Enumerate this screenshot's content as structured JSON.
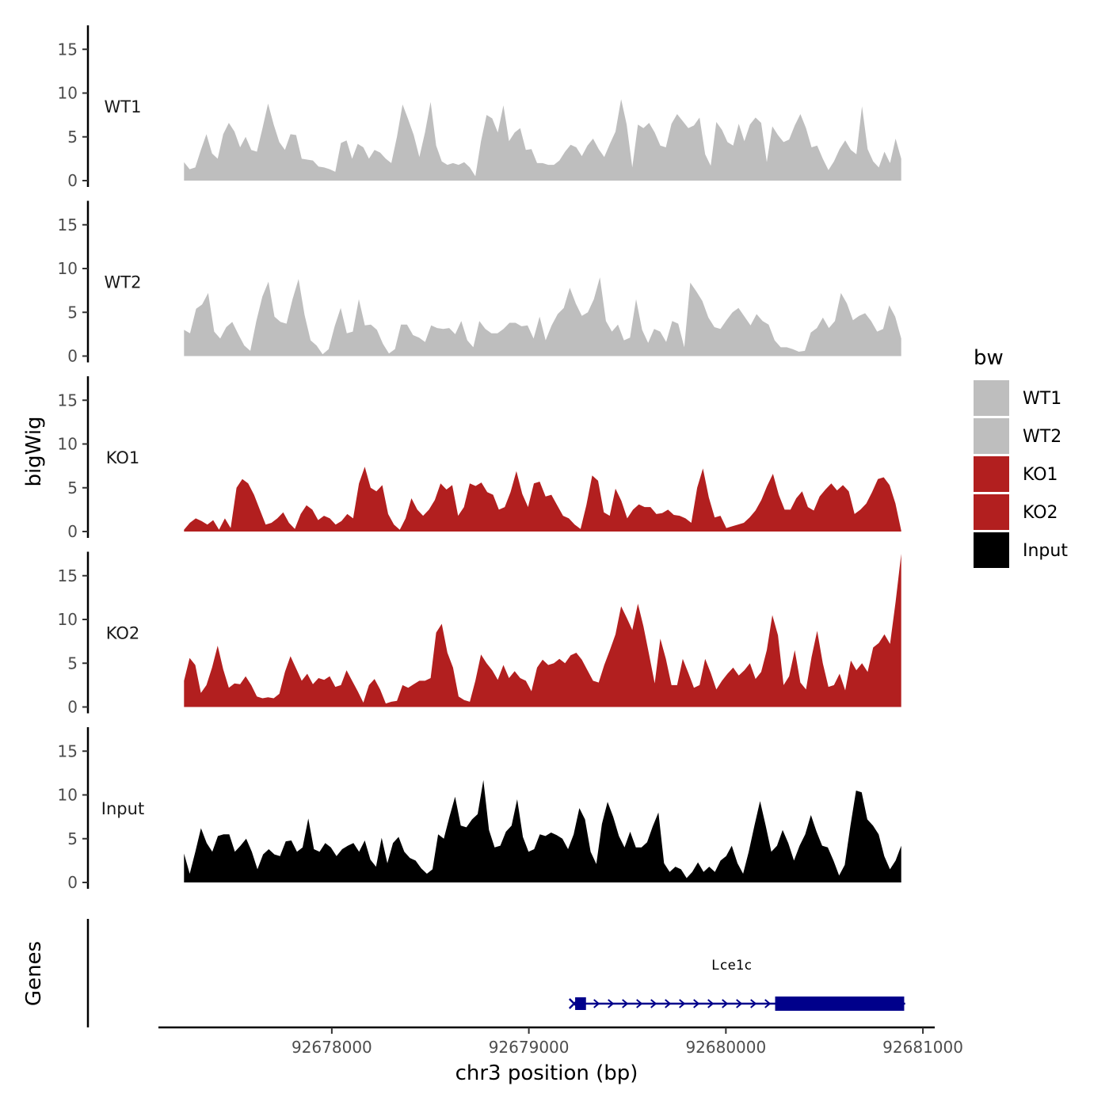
{
  "chart_data": {
    "type": "area",
    "xlabel": "chr3 position (bp)",
    "ylabel": "bigWig",
    "genes_label": "Genes",
    "xlim": [
      92677120,
      92681060
    ],
    "x_range": [
      92677250,
      92680890
    ],
    "x_ticks": [
      92678000,
      92679000,
      92680000,
      92681000
    ],
    "x_tick_labels": [
      "92678000",
      "92679000",
      "92680000",
      "92681000"
    ],
    "ylim": [
      0,
      18
    ],
    "y_ticks": [
      0,
      5,
      10,
      15
    ],
    "y_tick_labels": [
      "0",
      "5",
      "10",
      "15"
    ],
    "legend": {
      "title": "bw",
      "position": "right",
      "entries": [
        {
          "label": "WT1",
          "color": "#bebebe"
        },
        {
          "label": "WT2",
          "color": "#bebebe"
        },
        {
          "label": "KO1",
          "color": "#b21f1f"
        },
        {
          "label": "KO2",
          "color": "#b21f1f"
        },
        {
          "label": "Input",
          "color": "#000000"
        }
      ]
    },
    "series": [
      {
        "name": "WT1",
        "color": "#bebebe",
        "values": [
          2.1,
          1.3,
          1.5,
          3.5,
          5.3,
          3.1,
          2.5,
          5.3,
          6.6,
          5.6,
          3.8,
          5.0,
          3.5,
          3.3,
          6.0,
          8.8,
          6.4,
          4.4,
          3.5,
          5.3,
          5.2,
          2.5,
          2.4,
          2.3,
          1.6,
          1.5,
          1.3,
          1.0,
          4.3,
          4.6,
          2.5,
          4.2,
          3.8,
          2.5,
          3.5,
          3.2,
          2.5,
          2.0,
          5.0,
          8.7,
          7.0,
          5.2,
          2.7,
          5.5,
          9.0,
          4.0,
          2.2,
          1.8,
          2.0,
          1.8,
          2.1,
          1.5,
          0.5,
          4.5,
          7.5,
          7.1,
          5.5,
          8.6,
          4.5,
          5.5,
          6.0,
          3.5,
          3.6,
          2.0,
          2.0,
          1.8,
          1.8,
          2.3,
          3.3,
          4.1,
          3.8,
          2.8,
          4.0,
          4.8,
          3.6,
          2.7,
          4.2,
          5.6,
          9.3,
          6.4,
          1.5,
          6.4,
          6.0,
          6.6,
          5.5,
          4.0,
          3.8,
          6.5,
          7.6,
          6.8,
          6.0,
          6.3,
          7.2,
          3.0,
          1.7,
          6.7,
          5.8,
          4.4,
          4.0,
          6.5,
          4.5,
          6.4,
          7.2,
          6.6,
          2.1,
          6.2,
          5.2,
          4.4,
          4.7,
          6.3,
          7.6,
          6.0,
          3.8,
          4.0,
          2.5,
          1.2,
          2.2,
          3.6,
          4.6,
          3.5,
          3.0,
          8.5,
          3.6,
          2.2,
          1.5,
          3.3,
          2.0,
          4.8,
          2.5
        ]
      },
      {
        "name": "WT2",
        "color": "#bebebe",
        "values": [
          3.0,
          2.6,
          5.4,
          5.9,
          7.2,
          2.8,
          2.0,
          3.3,
          3.9,
          2.5,
          1.2,
          0.6,
          4.0,
          6.8,
          8.5,
          4.5,
          3.9,
          3.7,
          6.5,
          8.8,
          4.7,
          1.8,
          1.2,
          0.2,
          0.8,
          3.4,
          5.5,
          2.6,
          2.8,
          6.5,
          3.5,
          3.6,
          3.0,
          1.4,
          0.3,
          0.8,
          3.6,
          3.6,
          2.4,
          2.1,
          1.6,
          3.5,
          3.2,
          3.1,
          3.2,
          2.5,
          4.0,
          1.8,
          1.0,
          4.0,
          3.1,
          2.6,
          2.6,
          3.1,
          3.8,
          3.8,
          3.4,
          3.5,
          2.0,
          4.5,
          1.8,
          3.5,
          4.8,
          5.5,
          7.8,
          6.0,
          4.6,
          5.0,
          6.5,
          9.0,
          4.0,
          2.8,
          3.6,
          1.8,
          2.1,
          6.5,
          3.0,
          1.5,
          3.1,
          2.8,
          1.6,
          4.0,
          3.7,
          1.0,
          8.4,
          7.4,
          6.3,
          4.4,
          3.3,
          3.1,
          4.1,
          5.0,
          5.5,
          4.5,
          3.5,
          4.8,
          4.0,
          3.6,
          1.8,
          1.0,
          1.0,
          0.8,
          0.5,
          0.6,
          2.7,
          3.2,
          4.4,
          3.2,
          4.0,
          7.2,
          6.0,
          4.1,
          4.6,
          4.9,
          4.0,
          2.8,
          3.1,
          5.8,
          4.5,
          2.0
        ]
      },
      {
        "name": "KO1",
        "color": "#b21f1f",
        "values": [
          0.2,
          1.0,
          1.5,
          1.2,
          0.8,
          1.3,
          0.2,
          1.5,
          0.4,
          5.0,
          6.0,
          5.5,
          4.2,
          2.5,
          0.8,
          1.0,
          1.5,
          2.2,
          1.0,
          0.3,
          2.0,
          3.0,
          2.5,
          1.3,
          1.8,
          1.5,
          0.8,
          1.2,
          2.0,
          1.5,
          5.5,
          7.4,
          5.0,
          4.6,
          5.3,
          2.0,
          0.8,
          0.2,
          1.5,
          3.8,
          2.5,
          1.8,
          2.5,
          3.6,
          5.5,
          4.8,
          5.3,
          1.8,
          2.8,
          5.5,
          5.2,
          5.6,
          4.5,
          4.2,
          2.5,
          2.8,
          4.5,
          6.9,
          4.3,
          2.8,
          5.5,
          5.7,
          4.0,
          4.2,
          3.0,
          1.8,
          1.5,
          0.8,
          0.3,
          3.0,
          6.4,
          5.8,
          2.2,
          1.8,
          4.9,
          3.5,
          1.5,
          2.5,
          3.1,
          2.8,
          2.8,
          2.0,
          2.1,
          2.5,
          1.9,
          1.8,
          1.5,
          1.0,
          5.0,
          7.2,
          3.9,
          1.6,
          1.8,
          0.4,
          0.6,
          0.8,
          1.0,
          1.6,
          2.4,
          3.6,
          5.2,
          6.6,
          4.2,
          2.5,
          2.5,
          3.8,
          4.6,
          2.8,
          2.4,
          4.0,
          4.8,
          5.5,
          4.7,
          5.3,
          4.6,
          2.0,
          2.5,
          3.2,
          4.5,
          6.0,
          6.2,
          5.3,
          3.2,
          0.1
        ]
      },
      {
        "name": "KO2",
        "color": "#b21f1f",
        "values": [
          3.0,
          5.6,
          4.8,
          1.6,
          2.5,
          4.5,
          7.0,
          4.3,
          2.2,
          2.7,
          2.6,
          3.5,
          2.5,
          1.2,
          1.0,
          1.1,
          1.0,
          1.5,
          4.0,
          5.8,
          4.4,
          3.0,
          3.8,
          2.6,
          3.3,
          3.1,
          3.5,
          2.3,
          2.5,
          4.2,
          3.0,
          1.8,
          0.5,
          2.5,
          3.2,
          2.0,
          0.4,
          0.6,
          0.7,
          2.5,
          2.2,
          2.6,
          3.0,
          3.0,
          3.3,
          8.5,
          9.5,
          6.2,
          4.5,
          1.2,
          0.8,
          0.6,
          3.0,
          6.0,
          5.0,
          4.2,
          3.1,
          4.8,
          3.3,
          4.1,
          3.3,
          3.0,
          1.8,
          4.5,
          5.4,
          4.8,
          5.0,
          5.5,
          5.0,
          5.9,
          6.2,
          5.4,
          4.2,
          3.0,
          2.8,
          4.8,
          6.5,
          8.3,
          11.5,
          10.2,
          8.8,
          11.8,
          9.2,
          6.0,
          2.7,
          7.8,
          5.5,
          2.5,
          2.5,
          5.5,
          3.9,
          2.2,
          2.5,
          5.5,
          3.9,
          2.0,
          3.0,
          3.8,
          4.5,
          3.6,
          4.2,
          5.0,
          3.2,
          4.0,
          6.5,
          10.5,
          8.2,
          2.5,
          3.5,
          6.5,
          2.8,
          2.0,
          5.7,
          8.7,
          5.0,
          2.3,
          2.5,
          3.8,
          1.9,
          5.3,
          4.2,
          5.0,
          4.0,
          6.8,
          7.3,
          8.3,
          7.2,
          12.0,
          17.5
        ]
      },
      {
        "name": "Input",
        "color": "#000000",
        "values": [
          3.3,
          1.0,
          3.5,
          6.2,
          4.5,
          3.5,
          5.3,
          5.5,
          5.5,
          3.5,
          4.2,
          5.0,
          3.5,
          1.5,
          3.2,
          3.8,
          3.2,
          3.0,
          4.7,
          4.8,
          3.5,
          4.0,
          7.3,
          3.8,
          3.5,
          4.5,
          4.0,
          3.0,
          3.8,
          4.2,
          4.5,
          3.5,
          4.8,
          2.6,
          1.8,
          5.1,
          2.2,
          4.5,
          5.2,
          3.5,
          2.8,
          2.5,
          1.6,
          1.0,
          1.5,
          5.5,
          5.0,
          7.5,
          9.8,
          6.5,
          6.3,
          7.2,
          7.8,
          11.7,
          6.0,
          4.0,
          4.2,
          5.8,
          6.5,
          9.5,
          5.2,
          3.5,
          3.8,
          5.5,
          5.3,
          5.7,
          5.4,
          5.0,
          3.8,
          5.5,
          8.5,
          7.2,
          3.5,
          2.1,
          6.7,
          9.2,
          7.5,
          5.3,
          4.0,
          5.8,
          4.0,
          4.0,
          4.6,
          6.4,
          8.0,
          2.2,
          1.2,
          1.8,
          1.5,
          0.5,
          1.2,
          2.3,
          1.2,
          1.8,
          1.2,
          2.5,
          3.0,
          4.2,
          2.2,
          1.0,
          3.5,
          6.5,
          9.3,
          6.5,
          3.5,
          4.2,
          6.0,
          4.5,
          2.5,
          4.2,
          5.5,
          7.7,
          5.8,
          4.2,
          4.0,
          2.5,
          0.8,
          2.0,
          6.5,
          10.5,
          10.3,
          7.2,
          6.5,
          5.5,
          3.0,
          1.5,
          2.5,
          4.2
        ]
      }
    ],
    "gene": {
      "name": "Lce1c",
      "color": "#00008b",
      "start": 92679230,
      "end": 92680910,
      "utr_blocks": [
        [
          92679235,
          92679290
        ]
      ],
      "cds_blocks": [
        [
          92680250,
          92680905
        ]
      ],
      "strand": "+"
    }
  }
}
